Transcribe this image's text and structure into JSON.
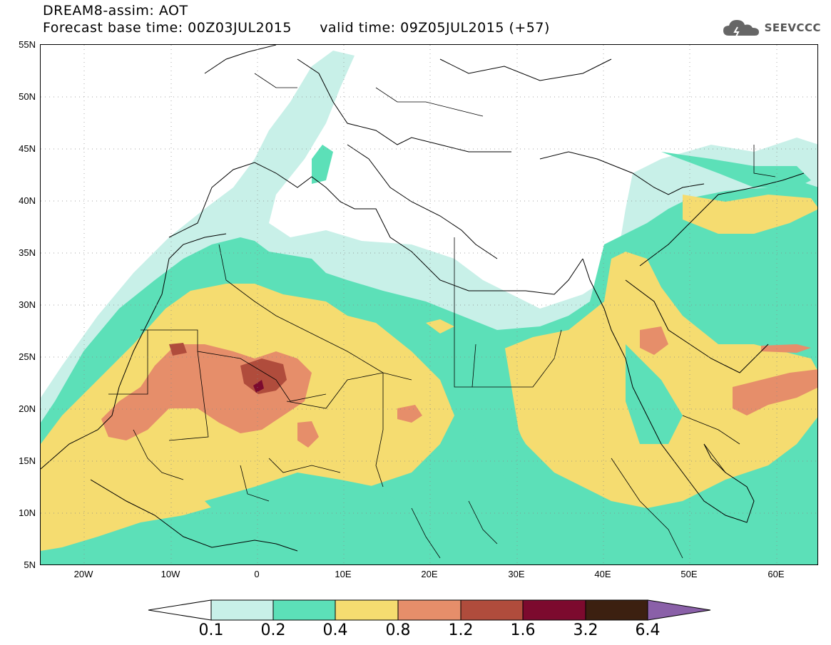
{
  "header": {
    "title_line1": "DREAM8-assim: AOT",
    "title_line2": "Forecast base time: 00Z03JUL2015      valid time: 09Z05JUL2015 (+57)",
    "logo_text": "SEEVCCC"
  },
  "map": {
    "lat_labels": [
      "55N",
      "50N",
      "45N",
      "40N",
      "35N",
      "30N",
      "25N",
      "20N",
      "15N",
      "10N",
      "5N"
    ],
    "lon_labels": [
      "20W",
      "10W",
      "0",
      "10E",
      "20E",
      "30E",
      "40E",
      "50E",
      "60E"
    ]
  },
  "colorbar": {
    "levels": [
      "0.1",
      "0.2",
      "0.4",
      "0.8",
      "1.2",
      "1.6",
      "3.2",
      "6.4"
    ],
    "colors": [
      "#c8f0e8",
      "#5ce0b8",
      "#f5dc70",
      "#e68e6a",
      "#b04c3c",
      "#7c0a2e",
      "#3c2010",
      "#8a60a8"
    ]
  }
}
